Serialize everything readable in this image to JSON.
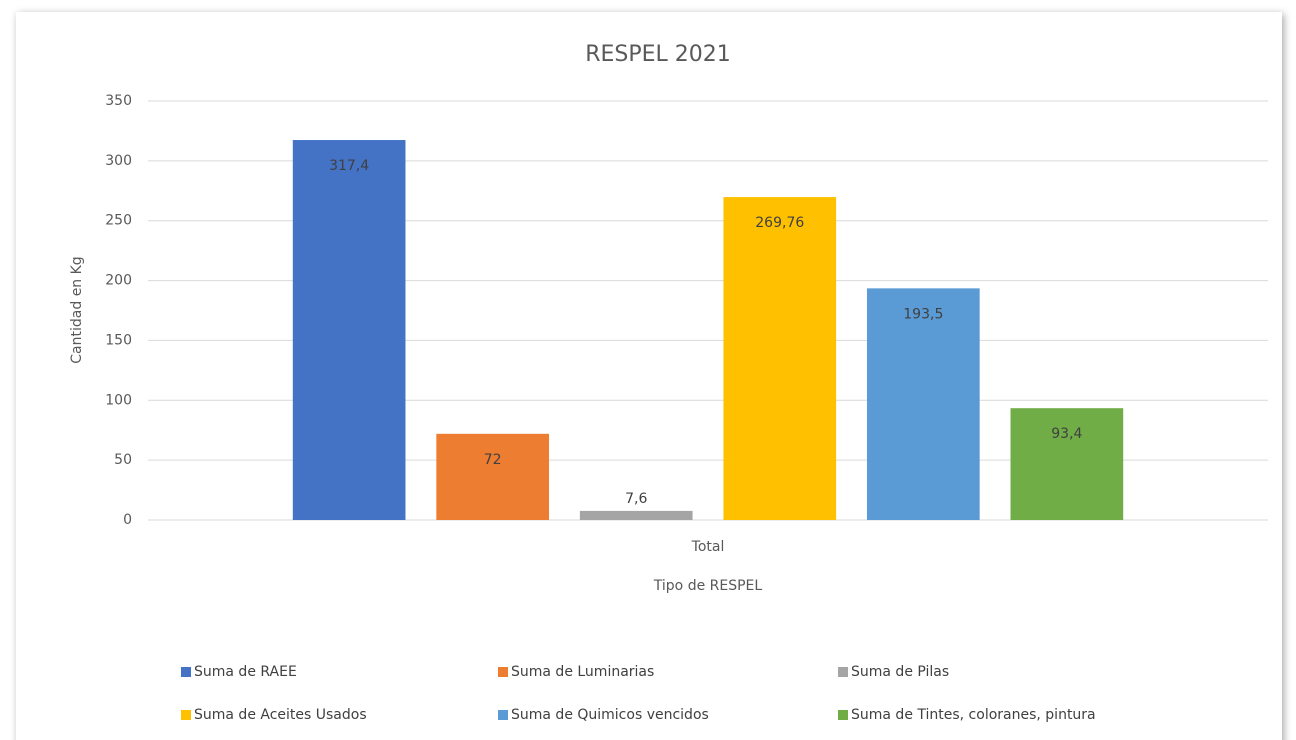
{
  "chart_data": {
    "type": "bar",
    "title": "RESPEL 2021",
    "x_label": "Tipo de RESPEL",
    "y_label": "Cantidad en Kg",
    "categories": [
      "Total"
    ],
    "series": [
      {
        "name": "Suma de RAEE",
        "color": "#4472c4",
        "values": [
          317.4
        ],
        "value_labels": [
          "317,4"
        ]
      },
      {
        "name": "Suma de Luminarias",
        "color": "#ed7d31",
        "values": [
          72
        ]
      },
      {
        "name": "Suma de Pilas",
        "color": "#a5a5a5",
        "values": [
          7.6
        ],
        "value_labels": [
          "7,6"
        ]
      },
      {
        "name": "Suma de Aceites Usados",
        "color": "#ffc000",
        "values": [
          269.76
        ],
        "value_labels": [
          "269,76"
        ]
      },
      {
        "name": "Suma de Quimicos vencidos",
        "color": "#5b9bd5",
        "values": [
          193.5
        ],
        "value_labels": [
          "193,5"
        ]
      },
      {
        "name": "Suma de Tintes, coloranes, pintura",
        "color": "#70ad47",
        "values": [
          93.4
        ],
        "value_labels": [
          "93,4"
        ]
      }
    ],
    "ylim": [
      0,
      350
    ],
    "yticks": [
      0,
      50,
      100,
      150,
      200,
      250,
      300,
      350
    ],
    "grid": true,
    "legend": "bottom"
  }
}
